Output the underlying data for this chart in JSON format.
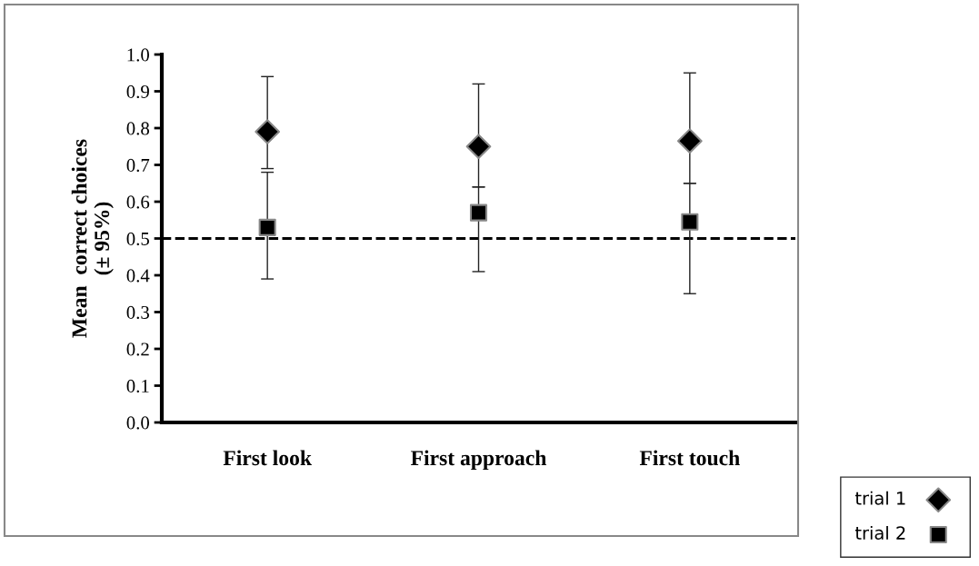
{
  "chart_data": {
    "type": "scatter",
    "ylabel": "Mean  correct choices\n(± 95%)",
    "categories": [
      "First look",
      "First approach",
      "First touch"
    ],
    "series": [
      {
        "name": "trial 1",
        "color": "#000000",
        "marker": "diamond",
        "values": [
          0.79,
          0.75,
          0.765
        ],
        "errors": [
          [
            0.69,
            0.94
          ],
          [
            0.64,
            0.92
          ],
          [
            0.65,
            0.95
          ]
        ]
      },
      {
        "name": "trial 2",
        "color": "#000000",
        "marker": "square",
        "values": [
          0.53,
          0.57,
          0.545
        ],
        "errors": [
          [
            0.39,
            0.68
          ],
          [
            0.41,
            0.64
          ],
          [
            0.35,
            0.65
          ]
        ]
      }
    ],
    "ylim": [
      0,
      1.0
    ],
    "yticks": [
      {
        "value": 0,
        "label": "0.0"
      },
      {
        "value": 0.1,
        "label": "0.1"
      },
      {
        "value": 0.2,
        "label": "0.2"
      },
      {
        "value": 0.3,
        "label": "0.3"
      },
      {
        "value": 0.4,
        "label": "0.4"
      },
      {
        "value": 0.5,
        "label": "0.5"
      },
      {
        "value": 0.6,
        "label": "0.6"
      },
      {
        "value": 0.7,
        "label": "0.7"
      },
      {
        "value": 0.8,
        "label": "0.8"
      },
      {
        "value": 0.9,
        "label": "0.9"
      },
      {
        "value": 1.0,
        "label": "1.0"
      }
    ],
    "ref_lines": [
      {
        "axis": "y",
        "value": 0.5,
        "color": "#000000",
        "line_style": "dashed"
      }
    ],
    "grid": false,
    "legend": "bottom right"
  }
}
